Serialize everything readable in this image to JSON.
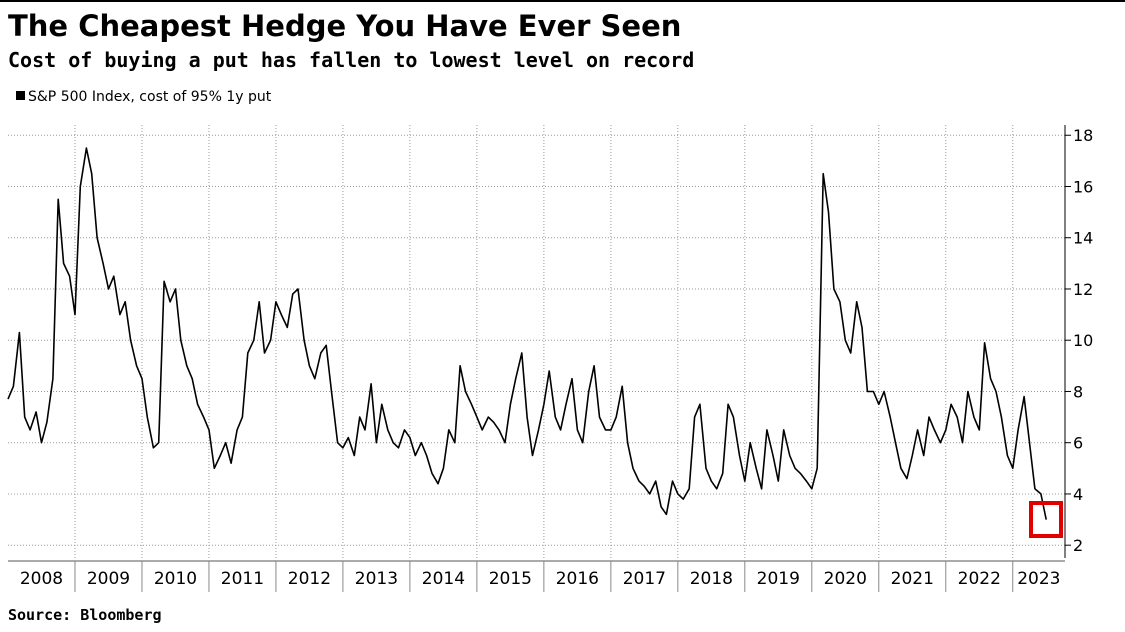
{
  "chart_data": {
    "type": "line",
    "title": "The Cheapest Hedge You Have Ever Seen",
    "subtitle": "Cost of buying a put has fallen to lowest level on record",
    "source": "Source: Bloomberg",
    "xlim": [
      2008,
      2023.78
    ],
    "xticks": [
      2008,
      2009,
      2010,
      2011,
      2012,
      2013,
      2014,
      2015,
      2016,
      2017,
      2018,
      2019,
      2020,
      2021,
      2022,
      2023
    ],
    "ylim": [
      1.5,
      18.4
    ],
    "yticks": [
      2,
      4,
      6,
      8,
      10,
      12,
      14,
      16,
      18
    ],
    "grid": true,
    "legend": "top-left",
    "x": [
      2008,
      2008.08,
      2008.17,
      2008.25,
      2008.33,
      2008.42,
      2008.5,
      2008.58,
      2008.67,
      2008.75,
      2008.83,
      2008.92,
      2009,
      2009.08,
      2009.17,
      2009.25,
      2009.33,
      2009.42,
      2009.5,
      2009.58,
      2009.67,
      2009.75,
      2009.83,
      2009.92,
      2010,
      2010.08,
      2010.17,
      2010.25,
      2010.33,
      2010.42,
      2010.5,
      2010.58,
      2010.67,
      2010.75,
      2010.83,
      2010.92,
      2011,
      2011.08,
      2011.17,
      2011.25,
      2011.33,
      2011.42,
      2011.5,
      2011.58,
      2011.67,
      2011.75,
      2011.83,
      2011.92,
      2012,
      2012.08,
      2012.17,
      2012.25,
      2012.33,
      2012.42,
      2012.5,
      2012.58,
      2012.67,
      2012.75,
      2012.83,
      2012.92,
      2013,
      2013.08,
      2013.17,
      2013.25,
      2013.33,
      2013.42,
      2013.5,
      2013.58,
      2013.67,
      2013.75,
      2013.83,
      2013.92,
      2014,
      2014.08,
      2014.17,
      2014.25,
      2014.33,
      2014.42,
      2014.5,
      2014.58,
      2014.67,
      2014.75,
      2014.83,
      2014.92,
      2015,
      2015.08,
      2015.17,
      2015.25,
      2015.33,
      2015.42,
      2015.5,
      2015.58,
      2015.67,
      2015.75,
      2015.83,
      2015.92,
      2016,
      2016.08,
      2016.17,
      2016.25,
      2016.33,
      2016.42,
      2016.5,
      2016.58,
      2016.67,
      2016.75,
      2016.83,
      2016.92,
      2017,
      2017.08,
      2017.17,
      2017.25,
      2017.33,
      2017.42,
      2017.5,
      2017.58,
      2017.67,
      2017.75,
      2017.83,
      2017.92,
      2018,
      2018.08,
      2018.17,
      2018.25,
      2018.33,
      2018.42,
      2018.5,
      2018.58,
      2018.67,
      2018.75,
      2018.83,
      2018.92,
      2019,
      2019.08,
      2019.17,
      2019.25,
      2019.33,
      2019.42,
      2019.5,
      2019.58,
      2019.67,
      2019.75,
      2019.83,
      2019.92,
      2020,
      2020.08,
      2020.17,
      2020.25,
      2020.33,
      2020.42,
      2020.5,
      2020.58,
      2020.67,
      2020.75,
      2020.83,
      2020.92,
      2021,
      2021.08,
      2021.17,
      2021.25,
      2021.33,
      2021.42,
      2021.5,
      2021.58,
      2021.67,
      2021.75,
      2021.83,
      2021.92,
      2022,
      2022.08,
      2022.17,
      2022.25,
      2022.33,
      2022.42,
      2022.5,
      2022.58,
      2022.67,
      2022.75,
      2022.83,
      2022.92,
      2023,
      2023.08,
      2023.17,
      2023.25,
      2023.33,
      2023.42,
      2023.5
    ],
    "series": [
      {
        "name": "S&P 500 Index, cost of 95% 1y put",
        "color": "#000000",
        "values": [
          7.7,
          8.2,
          10.3,
          7.0,
          6.5,
          7.2,
          6.0,
          6.8,
          8.5,
          15.5,
          13.0,
          12.5,
          11.0,
          16.0,
          17.5,
          16.5,
          14.0,
          13.0,
          12.0,
          12.5,
          11.0,
          11.5,
          10.0,
          9.0,
          8.5,
          7.0,
          5.8,
          6.0,
          12.3,
          11.5,
          12.0,
          10.0,
          9.0,
          8.5,
          7.5,
          7.0,
          6.5,
          5.0,
          5.5,
          6.0,
          5.2,
          6.5,
          7.0,
          9.5,
          10.0,
          11.5,
          9.5,
          10.0,
          11.5,
          11.0,
          10.5,
          11.8,
          12.0,
          10.0,
          9.0,
          8.5,
          9.5,
          9.8,
          8.0,
          6.0,
          5.8,
          6.2,
          5.5,
          7.0,
          6.5,
          8.3,
          6.0,
          7.5,
          6.5,
          6.0,
          5.8,
          6.5,
          6.2,
          5.5,
          6.0,
          5.5,
          4.8,
          4.4,
          5.0,
          6.5,
          6.0,
          9.0,
          8.0,
          7.5,
          7.0,
          6.5,
          7.0,
          6.8,
          6.5,
          6.0,
          7.5,
          8.5,
          9.5,
          7.0,
          5.5,
          6.5,
          7.5,
          8.8,
          7.0,
          6.5,
          7.5,
          8.5,
          6.5,
          6.0,
          8.0,
          9.0,
          7.0,
          6.5,
          6.5,
          7.0,
          8.2,
          6.0,
          5.0,
          4.5,
          4.3,
          4.0,
          4.5,
          3.5,
          3.2,
          4.5,
          4.0,
          3.8,
          4.2,
          7.0,
          7.5,
          5.0,
          4.5,
          4.2,
          4.8,
          7.5,
          7.0,
          5.5,
          4.5,
          6.0,
          5.0,
          4.2,
          6.5,
          5.5,
          4.5,
          6.5,
          5.5,
          5.0,
          4.8,
          4.5,
          4.2,
          5.0,
          16.5,
          15.0,
          12.0,
          11.5,
          10.0,
          9.5,
          11.5,
          10.5,
          8.0,
          8.0,
          7.5,
          8.0,
          7.0,
          6.0,
          5.0,
          4.6,
          5.5,
          6.5,
          5.5,
          7.0,
          6.5,
          6.0,
          6.5,
          7.5,
          7.0,
          6.0,
          8.0,
          7.0,
          6.5,
          9.9,
          8.5,
          8.0,
          7.0,
          5.5,
          5.0,
          6.5,
          7.8,
          6.0,
          4.2,
          4.0,
          3.0
        ]
      }
    ]
  }
}
